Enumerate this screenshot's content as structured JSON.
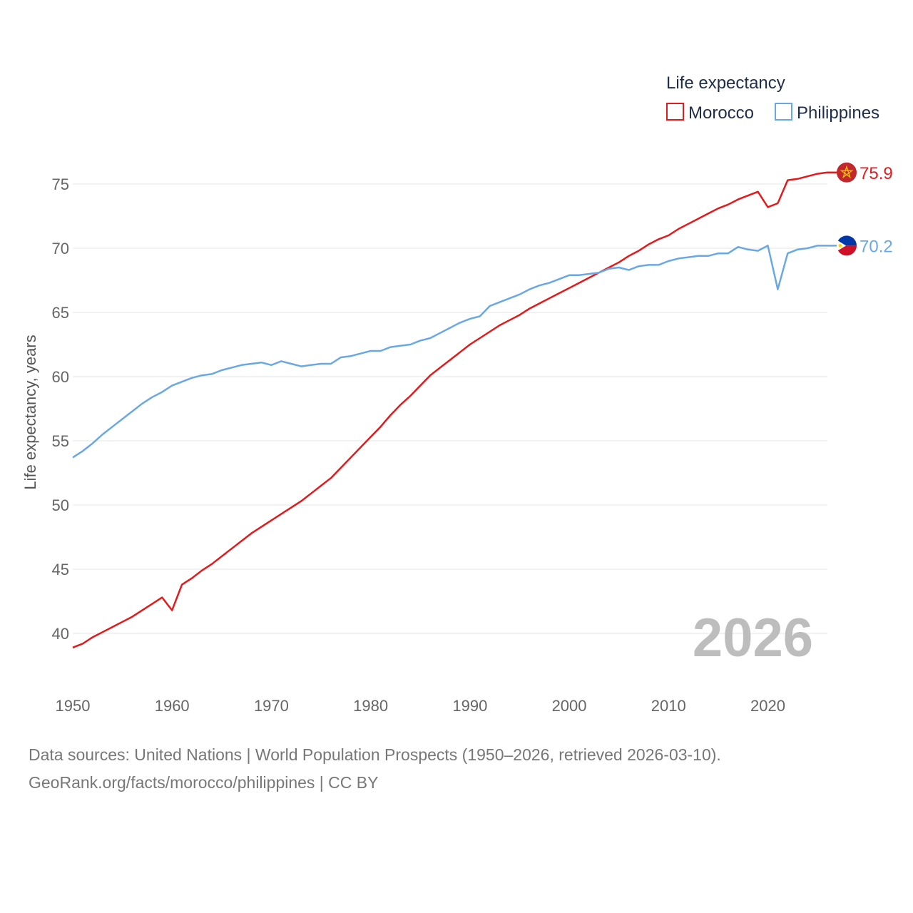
{
  "chart_data": {
    "type": "line",
    "legend": {
      "title": "Life expectancy",
      "placement": "top-right"
    },
    "ylabel": "Life expectancy, years",
    "xlabel": "",
    "xlim": [
      1950,
      2026
    ],
    "ylim": [
      37,
      78
    ],
    "yticks": [
      40,
      45,
      50,
      55,
      60,
      65,
      70,
      75
    ],
    "xticks": [
      1950,
      1960,
      1970,
      1980,
      1990,
      2000,
      2010,
      2020
    ],
    "year_label": "2026",
    "x": [
      1950,
      1951,
      1952,
      1953,
      1954,
      1955,
      1956,
      1957,
      1958,
      1959,
      1960,
      1961,
      1962,
      1963,
      1964,
      1965,
      1966,
      1967,
      1968,
      1969,
      1970,
      1971,
      1972,
      1973,
      1974,
      1975,
      1976,
      1977,
      1978,
      1979,
      1980,
      1981,
      1982,
      1983,
      1984,
      1985,
      1986,
      1987,
      1988,
      1989,
      1990,
      1991,
      1992,
      1993,
      1994,
      1995,
      1996,
      1997,
      1998,
      1999,
      2000,
      2001,
      2002,
      2003,
      2004,
      2005,
      2006,
      2007,
      2008,
      2009,
      2010,
      2011,
      2012,
      2013,
      2014,
      2015,
      2016,
      2017,
      2018,
      2019,
      2020,
      2021,
      2022,
      2023,
      2024,
      2025,
      2026
    ],
    "series": [
      {
        "name": "Morocco",
        "color": "#e31a1c",
        "end_label": "75.9",
        "flag_icon": "morocco-flag-icon",
        "values": [
          38.9,
          39.2,
          39.7,
          40.1,
          40.5,
          40.9,
          41.3,
          41.8,
          42.3,
          42.8,
          41.8,
          43.8,
          44.3,
          44.9,
          45.4,
          46.0,
          46.6,
          47.2,
          47.8,
          48.3,
          48.8,
          49.3,
          49.8,
          50.3,
          50.9,
          51.5,
          52.1,
          52.9,
          53.7,
          54.5,
          55.3,
          56.1,
          57.0,
          57.8,
          58.5,
          59.3,
          60.1,
          60.7,
          61.3,
          61.9,
          62.5,
          63.0,
          63.5,
          64.0,
          64.4,
          64.8,
          65.3,
          65.7,
          66.1,
          66.5,
          66.9,
          67.3,
          67.7,
          68.1,
          68.5,
          68.9,
          69.4,
          69.8,
          70.3,
          70.7,
          71.0,
          71.5,
          71.9,
          72.3,
          72.7,
          73.1,
          73.4,
          73.8,
          74.1,
          74.4,
          73.2,
          73.5,
          75.3,
          75.4,
          75.6,
          75.8,
          75.9
        ]
      },
      {
        "name": "Philippines",
        "color": "#6aa8e4",
        "end_label": "70.2",
        "flag_icon": "philippines-flag-icon",
        "values": [
          53.7,
          54.2,
          54.8,
          55.5,
          56.1,
          56.7,
          57.3,
          57.9,
          58.4,
          58.8,
          59.3,
          59.6,
          59.9,
          60.1,
          60.2,
          60.5,
          60.7,
          60.9,
          61.0,
          61.1,
          60.9,
          61.2,
          61.0,
          60.8,
          60.9,
          61.0,
          61.0,
          61.5,
          61.6,
          61.8,
          62.0,
          62.0,
          62.3,
          62.4,
          62.5,
          62.8,
          63.0,
          63.4,
          63.8,
          64.2,
          64.5,
          64.7,
          65.5,
          65.8,
          66.1,
          66.4,
          66.8,
          67.1,
          67.3,
          67.6,
          67.9,
          67.9,
          68.0,
          68.1,
          68.4,
          68.5,
          68.3,
          68.6,
          68.7,
          68.7,
          69.0,
          69.2,
          69.3,
          69.4,
          69.4,
          69.6,
          69.6,
          70.1,
          69.9,
          69.8,
          70.2,
          66.8,
          69.6,
          69.9,
          70.0,
          70.2,
          70.2
        ]
      }
    ]
  },
  "source": {
    "line1": "Data sources: United Nations | World Population Prospects (1950–2026, retrieved 2026-03-10).",
    "line2": "GeoRank.org/facts/morocco/philippines | CC BY"
  }
}
